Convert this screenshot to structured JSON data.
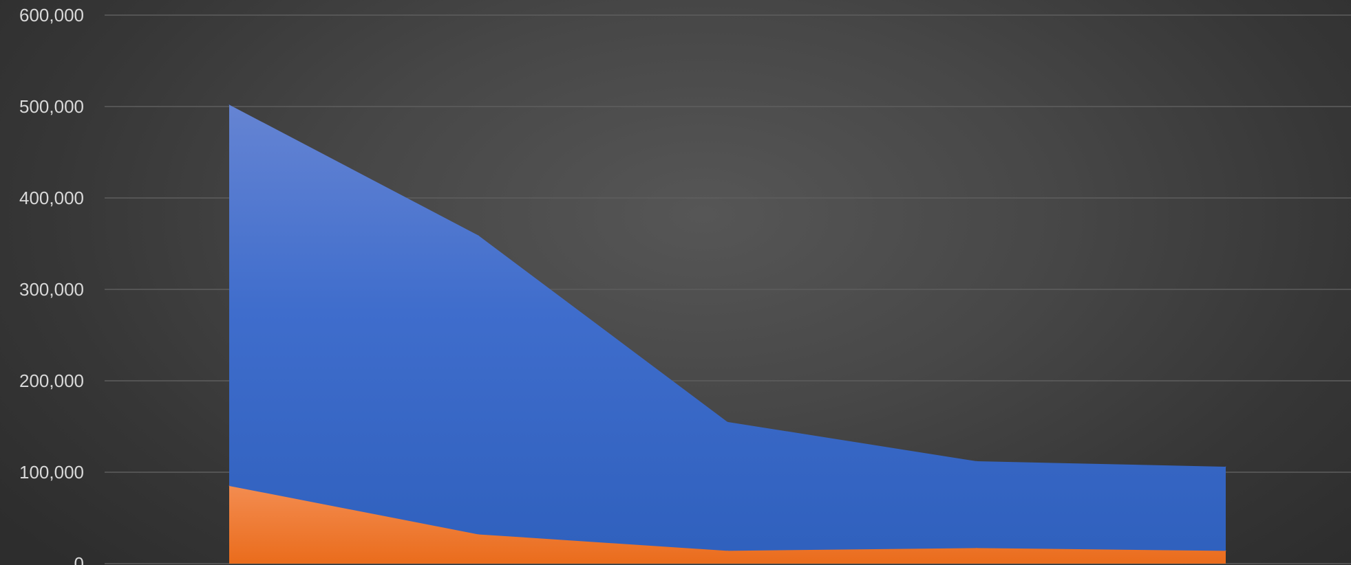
{
  "chart_data": {
    "type": "area",
    "stacked": false,
    "categories": [
      "",
      "",
      "",
      "",
      ""
    ],
    "series": [
      {
        "values": [
          502000,
          359000,
          155000,
          112000,
          106000
        ],
        "color": "#3465c1"
      },
      {
        "values": [
          85000,
          32000,
          14000,
          17000,
          14000
        ],
        "color": "#ed7122"
      }
    ],
    "ylim": [
      0,
      600000
    ],
    "yticks": [
      "0",
      "100,000",
      "200,000",
      "300,000",
      "400,000",
      "500,000",
      "600,000"
    ],
    "grid": true,
    "legend": "none",
    "title": "",
    "xlabel": "",
    "ylabel": ""
  }
}
